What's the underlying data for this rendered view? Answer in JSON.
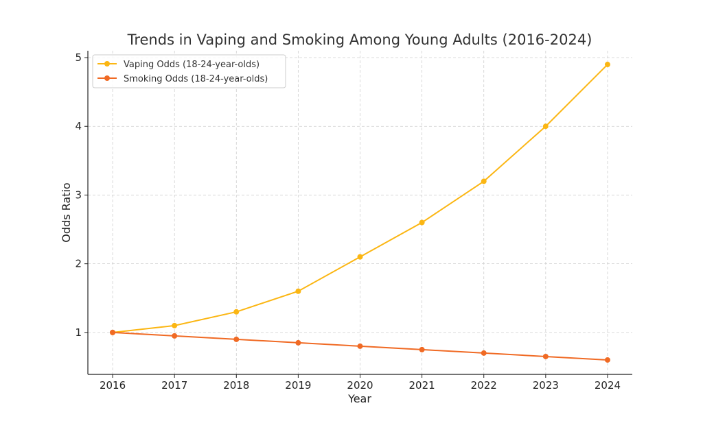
{
  "chart_data": {
    "type": "line",
    "title": "Trends in Vaping and Smoking Among Young Adults (2016-2024)",
    "xlabel": "Year",
    "ylabel": "Odds Ratio",
    "x": [
      2016,
      2017,
      2018,
      2019,
      2020,
      2021,
      2022,
      2023,
      2024
    ],
    "x_ticks": [
      "2016",
      "2017",
      "2018",
      "2019",
      "2020",
      "2021",
      "2022",
      "2023",
      "2024"
    ],
    "y_ticks": [
      1,
      2,
      3,
      4,
      5
    ],
    "ylim": [
      0.39,
      5.1
    ],
    "xlim": [
      2015.6,
      2024.4
    ],
    "grid": true,
    "legend_position": "upper-left",
    "series": [
      {
        "name": "Vaping Odds (18-24-year-olds)",
        "color": "#FBB613",
        "values": [
          1.0,
          1.1,
          1.3,
          1.6,
          2.1,
          2.6,
          3.2,
          4.0,
          4.9
        ]
      },
      {
        "name": "Smoking Odds (18-24-year-olds)",
        "color": "#F06A24",
        "values": [
          1.0,
          0.95,
          0.9,
          0.85,
          0.8,
          0.75,
          0.7,
          0.65,
          0.6
        ]
      }
    ]
  }
}
